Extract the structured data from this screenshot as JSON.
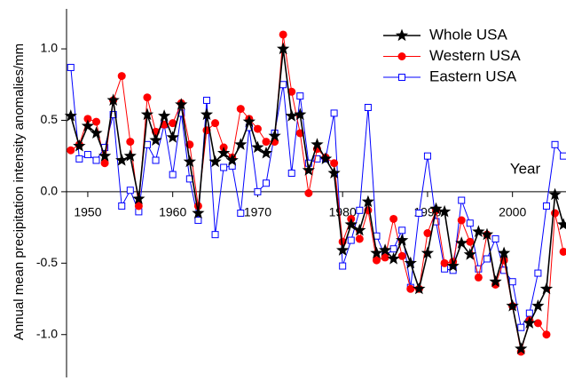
{
  "chart_data": {
    "type": "line",
    "y_label": "Annual mean precipitation intensity anomalies/mm",
    "x_label": "Year",
    "x": [
      1948,
      1949,
      1950,
      1951,
      1952,
      1953,
      1954,
      1955,
      1956,
      1957,
      1958,
      1959,
      1960,
      1961,
      1962,
      1963,
      1964,
      1965,
      1966,
      1967,
      1968,
      1969,
      1970,
      1971,
      1972,
      1973,
      1974,
      1975,
      1976,
      1977,
      1978,
      1979,
      1980,
      1981,
      1982,
      1983,
      1984,
      1985,
      1986,
      1987,
      1988,
      1989,
      1990,
      1991,
      1992,
      1993,
      1994,
      1995,
      1996,
      1997,
      1998,
      1999,
      2000,
      2001,
      2002,
      2003,
      2004,
      2005,
      2006
    ],
    "series": [
      {
        "name": "Whole USA",
        "color": "#000000",
        "marker": "star",
        "values": [
          0.53,
          0.32,
          0.46,
          0.41,
          0.25,
          0.64,
          0.22,
          0.25,
          -0.05,
          0.54,
          0.36,
          0.53,
          0.38,
          0.61,
          0.21,
          -0.15,
          0.54,
          0.21,
          0.27,
          0.22,
          0.33,
          0.49,
          0.31,
          0.27,
          0.39,
          1.0,
          0.53,
          0.54,
          0.15,
          0.33,
          0.23,
          0.13,
          -0.41,
          -0.23,
          -0.27,
          -0.07,
          -0.43,
          -0.41,
          -0.47,
          -0.34,
          -0.5,
          -0.68,
          -0.43,
          -0.12,
          -0.14,
          -0.52,
          -0.36,
          -0.44,
          -0.28,
          -0.3,
          -0.63,
          -0.43,
          -0.8,
          -1.1,
          -0.92,
          -0.8,
          -0.68,
          -0.02,
          -0.23
        ]
      },
      {
        "name": "Western USA",
        "color": "#ff0000",
        "marker": "circle",
        "values": [
          0.29,
          0.33,
          0.51,
          0.49,
          0.2,
          0.64,
          0.81,
          0.35,
          -0.1,
          0.66,
          0.42,
          0.47,
          0.48,
          0.62,
          0.33,
          -0.1,
          0.43,
          0.48,
          0.31,
          0.24,
          0.58,
          0.51,
          0.44,
          0.35,
          0.35,
          1.1,
          0.7,
          0.41,
          -0.01,
          0.3,
          0.24,
          0.2,
          -0.35,
          -0.19,
          -0.33,
          -0.13,
          -0.48,
          -0.46,
          -0.19,
          -0.45,
          -0.68,
          -0.68,
          -0.29,
          -0.13,
          -0.5,
          -0.49,
          -0.2,
          -0.35,
          -0.6,
          -0.3,
          -0.65,
          -0.48,
          -0.8,
          -1.12,
          -0.9,
          -0.92,
          -1.0,
          -0.15,
          -0.42
        ]
      },
      {
        "name": "Eastern USA",
        "color": "#0000ff",
        "marker": "square",
        "values": [
          0.87,
          0.23,
          0.26,
          0.22,
          0.31,
          0.54,
          -0.1,
          0.01,
          -0.14,
          0.33,
          0.22,
          0.47,
          0.12,
          0.55,
          0.09,
          -0.2,
          0.64,
          -0.3,
          0.17,
          0.18,
          -0.15,
          0.45,
          0.0,
          0.06,
          0.41,
          0.75,
          0.13,
          0.67,
          0.2,
          0.23,
          0.23,
          0.55,
          -0.52,
          -0.34,
          -0.13,
          0.59,
          -0.31,
          -0.45,
          -0.4,
          -0.27,
          -0.67,
          -0.15,
          0.25,
          -0.21,
          -0.54,
          -0.55,
          -0.06,
          -0.22,
          -0.54,
          -0.47,
          -0.33,
          -0.55,
          -0.63,
          -0.95,
          -0.85,
          -0.57,
          -0.1,
          0.33,
          0.25
        ]
      }
    ],
    "xlim": [
      1947.5,
      2006.3
    ],
    "ylim": [
      -1.3,
      1.28
    ],
    "xticks": [
      1950,
      1960,
      1970,
      1980,
      1990,
      2000
    ],
    "yticks": [
      {
        "value": -1.0,
        "label": "-1.0"
      },
      -0.5,
      {
        "value": 0.0,
        "label": "0.0"
      },
      0.5,
      {
        "value": 1.0,
        "label": "1.0"
      }
    ],
    "legend": "upper right"
  }
}
